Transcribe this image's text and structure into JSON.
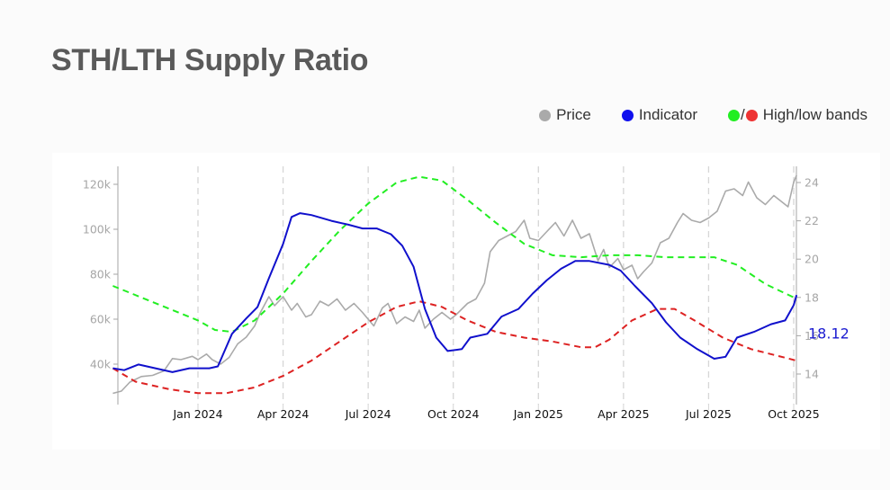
{
  "title": "STH/LTH Supply Ratio",
  "legend": [
    {
      "label": "Price",
      "colors": [
        "#aaaaaa"
      ]
    },
    {
      "label": "Indicator",
      "colors": [
        "#1010ee"
      ]
    },
    {
      "label": "High/low bands",
      "colors": [
        "#22ee22",
        "#ee3333"
      ]
    }
  ],
  "chart_data": {
    "type": "line",
    "title": "STH/LTH Supply Ratio",
    "xlabel": "",
    "x_unit": "months since Oct 2023",
    "x_ticks": [
      {
        "label": "Jan 2024",
        "x": 3
      },
      {
        "label": "Apr 2024",
        "x": 6
      },
      {
        "label": "Jul 2024",
        "x": 9
      },
      {
        "label": "Oct 2024",
        "x": 12
      },
      {
        "label": "Jan 2025",
        "x": 15
      },
      {
        "label": "Apr 2025",
        "x": 18
      },
      {
        "label": "Jul 2025",
        "x": 21
      },
      {
        "label": "Oct 2025",
        "x": 24
      }
    ],
    "x_range": [
      0,
      24.1
    ],
    "grid": "vertical dashed at x ticks",
    "y_left": {
      "label": "Price",
      "ticks": [
        40000,
        60000,
        80000,
        100000,
        120000
      ],
      "tick_labels": [
        "40k",
        "60k",
        "80k",
        "100k",
        "120k"
      ],
      "range": [
        22000,
        130000
      ]
    },
    "y_right": {
      "label": "Indicator",
      "ticks": [
        14,
        16,
        18,
        20,
        22,
        24
      ],
      "tick_labels": [
        "14",
        "16",
        "18",
        "20",
        "22",
        "24"
      ],
      "range": [
        12.4,
        25.2
      ]
    },
    "legend_position": "top-right",
    "last_value_label": "18.12",
    "series": [
      {
        "name": "Price",
        "axis": "left",
        "color": "#aaaaaa",
        "style": "solid",
        "points": [
          [
            0,
            27000
          ],
          [
            0.3,
            28000
          ],
          [
            0.6,
            32000
          ],
          [
            1,
            34500
          ],
          [
            1.4,
            35000
          ],
          [
            1.8,
            37000
          ],
          [
            2.1,
            42500
          ],
          [
            2.4,
            42000
          ],
          [
            2.8,
            43500
          ],
          [
            3,
            42000
          ],
          [
            3.3,
            44500
          ],
          [
            3.5,
            42000
          ],
          [
            3.8,
            40000
          ],
          [
            4.1,
            43000
          ],
          [
            4.4,
            49000
          ],
          [
            4.7,
            52000
          ],
          [
            5,
            57000
          ],
          [
            5.2,
            63000
          ],
          [
            5.5,
            70000
          ],
          [
            5.7,
            66000
          ],
          [
            6,
            70000
          ],
          [
            6.3,
            64000
          ],
          [
            6.5,
            67000
          ],
          [
            6.8,
            61000
          ],
          [
            7,
            62000
          ],
          [
            7.3,
            68000
          ],
          [
            7.6,
            66000
          ],
          [
            7.9,
            69000
          ],
          [
            8.2,
            64000
          ],
          [
            8.5,
            67000
          ],
          [
            8.8,
            63000
          ],
          [
            9,
            60000
          ],
          [
            9.2,
            57000
          ],
          [
            9.5,
            65000
          ],
          [
            9.7,
            67000
          ],
          [
            10,
            58000
          ],
          [
            10.3,
            61000
          ],
          [
            10.6,
            59000
          ],
          [
            10.8,
            64000
          ],
          [
            11,
            56000
          ],
          [
            11.3,
            60000
          ],
          [
            11.6,
            63000
          ],
          [
            11.9,
            60000
          ],
          [
            12.1,
            62000
          ],
          [
            12.5,
            67000
          ],
          [
            12.8,
            69000
          ],
          [
            13.1,
            76000
          ],
          [
            13.3,
            90000
          ],
          [
            13.6,
            95000
          ],
          [
            13.9,
            97000
          ],
          [
            14.2,
            99000
          ],
          [
            14.5,
            104000
          ],
          [
            14.7,
            96000
          ],
          [
            15,
            95000
          ],
          [
            15.3,
            99000
          ],
          [
            15.6,
            103000
          ],
          [
            15.9,
            97000
          ],
          [
            16.2,
            104000
          ],
          [
            16.5,
            96000
          ],
          [
            16.8,
            98000
          ],
          [
            17.1,
            86000
          ],
          [
            17.3,
            91000
          ],
          [
            17.5,
            83000
          ],
          [
            17.8,
            87000
          ],
          [
            18,
            82000
          ],
          [
            18.3,
            84000
          ],
          [
            18.5,
            78000
          ],
          [
            18.7,
            81000
          ],
          [
            19,
            85000
          ],
          [
            19.3,
            94000
          ],
          [
            19.6,
            96000
          ],
          [
            19.9,
            103000
          ],
          [
            20.1,
            107000
          ],
          [
            20.4,
            104000
          ],
          [
            20.7,
            103000
          ],
          [
            21,
            105000
          ],
          [
            21.3,
            108000
          ],
          [
            21.6,
            117000
          ],
          [
            21.9,
            118000
          ],
          [
            22.2,
            115000
          ],
          [
            22.4,
            121000
          ],
          [
            22.7,
            114000
          ],
          [
            23,
            111000
          ],
          [
            23.3,
            115000
          ],
          [
            23.6,
            112000
          ],
          [
            23.8,
            110000
          ],
          [
            24,
            121000
          ],
          [
            24.1,
            124000
          ]
        ]
      },
      {
        "name": "Indicator",
        "axis": "right",
        "color": "#1010cc",
        "style": "solid",
        "points": [
          [
            0,
            14.3
          ],
          [
            0.4,
            14.2
          ],
          [
            0.9,
            14.5
          ],
          [
            1.5,
            14.3
          ],
          [
            2.1,
            14.1
          ],
          [
            2.7,
            14.3
          ],
          [
            3.4,
            14.3
          ],
          [
            3.7,
            14.4
          ],
          [
            4.2,
            16.1
          ],
          [
            4.7,
            16.9
          ],
          [
            5.1,
            17.5
          ],
          [
            5.5,
            19.0
          ],
          [
            6,
            20.8
          ],
          [
            6.3,
            22.2
          ],
          [
            6.6,
            22.4
          ],
          [
            7,
            22.3
          ],
          [
            7.7,
            22.0
          ],
          [
            8.3,
            21.8
          ],
          [
            8.8,
            21.6
          ],
          [
            9.3,
            21.6
          ],
          [
            9.8,
            21.3
          ],
          [
            10.2,
            20.7
          ],
          [
            10.6,
            19.6
          ],
          [
            11,
            17.4
          ],
          [
            11.4,
            15.9
          ],
          [
            11.8,
            15.2
          ],
          [
            12.3,
            15.3
          ],
          [
            12.6,
            15.9
          ],
          [
            13.2,
            16.1
          ],
          [
            13.7,
            17.0
          ],
          [
            14.3,
            17.4
          ],
          [
            14.8,
            18.2
          ],
          [
            15.3,
            18.9
          ],
          [
            15.8,
            19.5
          ],
          [
            16.3,
            19.9
          ],
          [
            16.8,
            19.9
          ],
          [
            17.5,
            19.7
          ],
          [
            17.9,
            19.4
          ],
          [
            18.4,
            18.6
          ],
          [
            19,
            17.7
          ],
          [
            19.5,
            16.7
          ],
          [
            20,
            15.9
          ],
          [
            20.6,
            15.3
          ],
          [
            21.2,
            14.8
          ],
          [
            21.6,
            14.9
          ],
          [
            22,
            15.9
          ],
          [
            22.6,
            16.2
          ],
          [
            23.2,
            16.6
          ],
          [
            23.7,
            16.8
          ],
          [
            24,
            17.6
          ],
          [
            24.1,
            18.12
          ]
        ]
      },
      {
        "name": "High band",
        "axis": "right",
        "color": "#22ee22",
        "style": "dashed",
        "points": [
          [
            0,
            18.6
          ],
          [
            1,
            18.0
          ],
          [
            2,
            17.4
          ],
          [
            3,
            16.8
          ],
          [
            3.6,
            16.3
          ],
          [
            4.2,
            16.2
          ],
          [
            5,
            16.8
          ],
          [
            6,
            18.2
          ],
          [
            7,
            19.9
          ],
          [
            8,
            21.5
          ],
          [
            9,
            22.9
          ],
          [
            10,
            24.0
          ],
          [
            10.8,
            24.3
          ],
          [
            11.6,
            24.1
          ],
          [
            12.5,
            23.1
          ],
          [
            13.5,
            21.9
          ],
          [
            14.5,
            20.8
          ],
          [
            15.5,
            20.2
          ],
          [
            16.5,
            20.1
          ],
          [
            17.5,
            20.2
          ],
          [
            18.5,
            20.2
          ],
          [
            19.5,
            20.1
          ],
          [
            20.5,
            20.1
          ],
          [
            21.2,
            20.1
          ],
          [
            22,
            19.7
          ],
          [
            23,
            18.7
          ],
          [
            24,
            18.0
          ]
        ]
      },
      {
        "name": "Low band",
        "axis": "right",
        "color": "#dd2222",
        "style": "dashed",
        "points": [
          [
            0,
            14.3
          ],
          [
            0.8,
            13.6
          ],
          [
            2,
            13.2
          ],
          [
            3,
            13.0
          ],
          [
            4,
            13.0
          ],
          [
            5,
            13.3
          ],
          [
            6,
            13.9
          ],
          [
            7,
            14.7
          ],
          [
            8,
            15.7
          ],
          [
            9,
            16.7
          ],
          [
            10,
            17.5
          ],
          [
            10.8,
            17.8
          ],
          [
            11.6,
            17.5
          ],
          [
            12.5,
            16.8
          ],
          [
            13.5,
            16.2
          ],
          [
            14.5,
            15.9
          ],
          [
            15.5,
            15.7
          ],
          [
            16.5,
            15.4
          ],
          [
            17,
            15.4
          ],
          [
            17.5,
            15.8
          ],
          [
            18.3,
            16.8
          ],
          [
            19.2,
            17.4
          ],
          [
            19.8,
            17.4
          ],
          [
            20.5,
            16.8
          ],
          [
            21.5,
            15.9
          ],
          [
            22.5,
            15.3
          ],
          [
            23.3,
            15.0
          ],
          [
            24.1,
            14.7
          ]
        ]
      }
    ]
  }
}
